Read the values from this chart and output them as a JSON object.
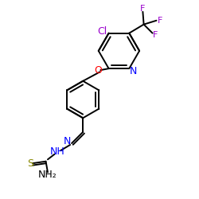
{
  "bg_color": "#ffffff",
  "bond_color": "#000000",
  "bond_lw": 1.4,
  "figsize": [
    2.5,
    2.5
  ],
  "dpi": 100,
  "colors": {
    "Cl": "#9900cc",
    "F": "#9900cc",
    "O": "#ff0000",
    "N": "#0000ff",
    "S": "#888800",
    "C": "#000000",
    "NH2": "#000000"
  }
}
